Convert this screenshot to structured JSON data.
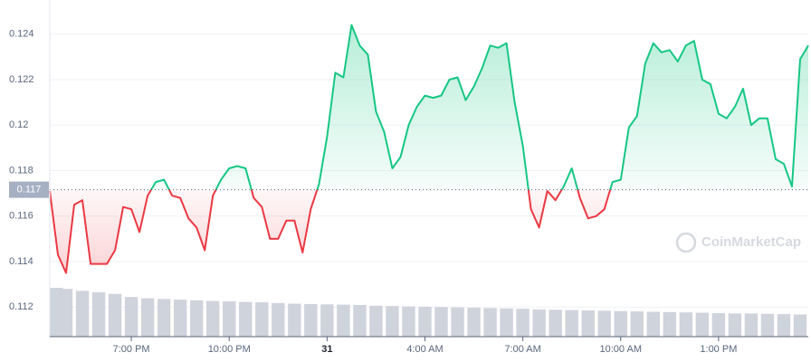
{
  "chart_data": {
    "type": "line",
    "watermark": "CoinMarketCap",
    "x": [
      16.5,
      16.75,
      17,
      17.25,
      17.5,
      17.75,
      18,
      18.25,
      18.5,
      18.75,
      19,
      19.25,
      19.5,
      19.75,
      20,
      20.25,
      20.5,
      20.75,
      21,
      21.25,
      21.5,
      21.75,
      22,
      22.25,
      22.5,
      22.75,
      23,
      23.25,
      23.5,
      23.75,
      24,
      24.25,
      24.5,
      24.75,
      25,
      25.25,
      25.5,
      25.75,
      26,
      26.25,
      26.5,
      26.75,
      27,
      27.25,
      27.5,
      27.75,
      28,
      28.25,
      28.5,
      28.75,
      29,
      29.25,
      29.5,
      29.75,
      30,
      30.25,
      30.5,
      30.75,
      31,
      31.25,
      31.5,
      31.75,
      32,
      32.25,
      32.5,
      32.75,
      33,
      33.25,
      33.5,
      33.75,
      34,
      34.25,
      34.5,
      34.75,
      35,
      35.25,
      35.5,
      35.75,
      36,
      36.25,
      36.5,
      36.75,
      37,
      37.25,
      37.5,
      37.75,
      38,
      38.25,
      38.5,
      38.75,
      39,
      39.25,
      39.5,
      39.75
    ],
    "series": [
      {
        "values": [
          0.1171,
          0.1143,
          0.1135,
          0.1165,
          0.1167,
          0.1139,
          0.1139,
          0.1139,
          0.1145,
          0.1164,
          0.1163,
          0.1153,
          0.1169,
          0.1175,
          0.1176,
          0.1169,
          0.1168,
          0.1159,
          0.1155,
          0.1145,
          0.1169,
          0.1176,
          0.1181,
          0.1182,
          0.1181,
          0.1168,
          0.1164,
          0.115,
          0.115,
          0.1158,
          0.1158,
          0.1144,
          0.1163,
          0.1174,
          0.1195,
          0.1223,
          0.1221,
          0.1244,
          0.1235,
          0.1231,
          0.1206,
          0.1197,
          0.1181,
          0.1186,
          0.12,
          0.1208,
          0.1213,
          0.1212,
          0.1213,
          0.122,
          0.1221,
          0.1211,
          0.1217,
          0.1225,
          0.1235,
          0.1234,
          0.1236,
          0.121,
          0.1191,
          0.1163,
          0.1155,
          0.1171,
          0.1167,
          0.1173,
          0.1181,
          0.1168,
          0.1159,
          0.116,
          0.1163,
          0.1175,
          0.1176,
          0.1199,
          0.1204,
          0.1227,
          0.1236,
          0.1232,
          0.1233,
          0.1228,
          0.1235,
          0.1237,
          0.122,
          0.1218,
          0.1205,
          0.1203,
          0.1208,
          0.1216,
          0.12,
          0.1203,
          0.1203,
          0.1185,
          0.1183,
          0.1173,
          0.1229,
          0.1235
        ]
      }
    ],
    "up_color": "#16c784",
    "down_color": "#ea3943",
    "baseline": {
      "value": 0.11716,
      "label": "0.117"
    },
    "volume": {
      "color": "#cfd3dc",
      "x": [
        16.5,
        17,
        17.5,
        18,
        18.5,
        19,
        19.5,
        20,
        20.5,
        21,
        21.5,
        22,
        22.5,
        23,
        23.5,
        24,
        24.5,
        25,
        25.5,
        26,
        26.5,
        27,
        27.5,
        28,
        28.5,
        29,
        29.5,
        30,
        30.5,
        31,
        31.5,
        32,
        32.5,
        33,
        33.5,
        34,
        34.5,
        35,
        35.5,
        36,
        36.5,
        37,
        37.5,
        38,
        38.5,
        39,
        39.5
      ],
      "values": [
        14.5,
        14.2,
        13.6,
        13.2,
        12.7,
        11.8,
        11.4,
        11.2,
        11,
        10.8,
        10.6,
        10.5,
        10.3,
        10.2,
        10,
        9.8,
        9.7,
        9.6,
        9.5,
        9.4,
        9.2,
        9.1,
        9,
        8.9,
        8.8,
        8.7,
        8.6,
        8.5,
        8.4,
        8.3,
        8.1,
        8,
        7.9,
        7.8,
        7.7,
        7.6,
        7.5,
        7.4,
        7.3,
        7.2,
        7.1,
        7,
        6.9,
        6.9,
        6.8,
        6.7,
        6.6
      ],
      "ylim": [
        0,
        100
      ]
    },
    "xlim": [
      16.5,
      39.75
    ],
    "xticks": [
      {
        "value": 19,
        "label": "7:00 PM"
      },
      {
        "value": 22,
        "label": "10:00 PM"
      },
      {
        "value": 25,
        "label": "31",
        "bold": true
      },
      {
        "value": 28,
        "label": "4:00 AM"
      },
      {
        "value": 31,
        "label": "7:00 AM"
      },
      {
        "value": 34,
        "label": "10:00 AM"
      },
      {
        "value": 37,
        "label": "1:00 PM"
      }
    ],
    "ylim": [
      0.1107,
      0.1255
    ],
    "yticks": [
      0.112,
      0.114,
      0.116,
      0.118,
      0.12,
      0.122,
      0.124
    ],
    "grid": true
  }
}
